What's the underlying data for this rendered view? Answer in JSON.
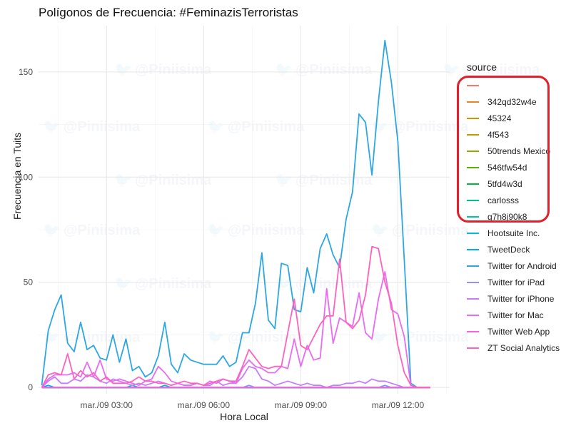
{
  "chart_data": {
    "type": "line",
    "title": "Polígonos de Frecuencia: #FeminazisTerroristas",
    "xlabel": "Hora Local",
    "ylabel": "Frecuencia en Tuits",
    "x_tick_labels": [
      "mar./09 03:00",
      "mar./09 06:00",
      "mar./09 09:00",
      "mar./09 12:00"
    ],
    "x_tick_values": [
      3,
      6,
      9,
      12
    ],
    "xlim": [
      0.9,
      13.6
    ],
    "y_ticks": [
      0,
      50,
      100,
      150
    ],
    "ylim": [
      -3,
      172
    ],
    "grid": true,
    "legend_title": "source",
    "legend_position": "right",
    "x": [
      1.0,
      1.2,
      1.4,
      1.6,
      1.8,
      2.0,
      2.2,
      2.4,
      2.6,
      2.8,
      3.0,
      3.2,
      3.4,
      3.6,
      3.8,
      4.0,
      4.2,
      4.4,
      4.6,
      4.8,
      5.0,
      5.2,
      5.4,
      5.6,
      5.8,
      6.0,
      6.2,
      6.4,
      6.6,
      6.8,
      7.0,
      7.2,
      7.4,
      7.6,
      7.8,
      8.0,
      8.2,
      8.4,
      8.6,
      8.8,
      9.0,
      9.2,
      9.4,
      9.6,
      9.8,
      10.0,
      10.2,
      10.4,
      10.6,
      10.8,
      11.0,
      11.2,
      11.4,
      11.6,
      11.8,
      12.0,
      12.2,
      12.4,
      12.6,
      12.8,
      13.0
    ],
    "series": [
      {
        "name": "",
        "color": "#F8766D",
        "values": [
          0,
          0,
          0,
          0,
          0,
          0,
          0,
          0,
          0,
          0,
          0,
          0,
          0,
          0,
          0,
          0,
          0,
          0,
          0,
          0,
          0,
          0,
          0,
          0,
          0,
          0,
          0,
          0,
          0,
          0,
          0,
          0,
          0,
          0,
          0,
          0,
          0,
          0,
          0,
          0,
          0,
          0,
          0,
          0,
          0,
          0,
          0,
          0,
          0,
          0,
          0,
          0,
          0,
          0,
          0,
          0,
          0,
          0,
          0,
          0,
          0
        ]
      },
      {
        "name": "342qd32w4e",
        "color": "#E7861B",
        "values": [
          0,
          0,
          0,
          0,
          0,
          0,
          0,
          0,
          0,
          0,
          0,
          0,
          0,
          0,
          0,
          0,
          0,
          0,
          0,
          0,
          0,
          0,
          0,
          0,
          0,
          0,
          0,
          0,
          0,
          0,
          0,
          0,
          0,
          0,
          0,
          0,
          0,
          0,
          0,
          0,
          0,
          0,
          0,
          0,
          0,
          0,
          0,
          0,
          0,
          0,
          0,
          0,
          0,
          0,
          0,
          0,
          0,
          0,
          0,
          0,
          0
        ]
      },
      {
        "name": "45324",
        "color": "#D39200",
        "values": [
          0,
          0,
          0,
          0,
          0,
          0,
          0,
          0,
          0,
          0,
          0,
          0,
          0,
          0,
          0,
          0,
          0,
          0,
          0,
          0,
          0,
          0,
          0,
          0,
          0,
          0,
          0,
          0,
          0,
          0,
          0,
          0,
          0,
          0,
          0,
          0,
          0,
          0,
          0,
          0,
          0,
          0,
          0,
          0,
          0,
          0,
          0,
          0,
          0,
          0,
          0,
          0,
          0,
          0,
          0,
          0,
          0,
          0,
          0,
          0,
          0
        ]
      },
      {
        "name": "4f543",
        "color": "#B79F00",
        "values": [
          0,
          0,
          0,
          0,
          0,
          0,
          0,
          0,
          0,
          0,
          0,
          0,
          0,
          0,
          0,
          0,
          0,
          0,
          0,
          0,
          0,
          0,
          0,
          0,
          0,
          0,
          0,
          0,
          0,
          0,
          0,
          0,
          0,
          0,
          0,
          0,
          0,
          0,
          0,
          0,
          0,
          0,
          0,
          0,
          0,
          0,
          0,
          0,
          0,
          0,
          0,
          0,
          0,
          0,
          0,
          0,
          0,
          0,
          0,
          0,
          0
        ]
      },
      {
        "name": "50trends Mexico",
        "color": "#93AA00",
        "values": [
          0,
          0,
          0,
          0,
          0,
          0,
          0,
          0,
          0,
          0,
          0,
          0,
          0,
          0,
          0,
          0,
          0,
          0,
          0,
          0,
          0,
          0,
          0,
          0,
          0,
          0,
          0,
          0,
          0,
          0,
          0,
          0,
          0,
          0,
          0,
          0,
          0,
          0,
          0,
          0,
          0,
          0,
          0,
          0,
          0,
          0,
          0,
          0,
          0,
          0,
          0,
          0,
          0,
          0,
          0,
          0,
          0,
          0,
          0,
          0,
          0
        ]
      },
      {
        "name": "546tfw54d",
        "color": "#5BB300",
        "values": [
          0,
          0,
          0,
          0,
          0,
          0,
          0,
          0,
          0,
          0,
          0,
          0,
          0,
          0,
          0,
          0,
          0,
          0,
          0,
          0,
          0,
          0,
          0,
          0,
          0,
          0,
          0,
          0,
          0,
          0,
          0,
          0,
          0,
          0,
          0,
          0,
          0,
          0,
          0,
          0,
          0,
          0,
          0,
          0,
          0,
          0,
          0,
          0,
          0,
          0,
          0,
          0,
          0,
          0,
          0,
          0,
          0,
          0,
          0,
          0,
          0
        ]
      },
      {
        "name": "5tfd4w3d",
        "color": "#00BA38",
        "values": [
          0,
          0,
          0,
          0,
          0,
          0,
          0,
          0,
          0,
          0,
          0,
          0,
          0,
          0,
          0,
          0,
          0,
          0,
          0,
          0,
          0,
          0,
          0,
          0,
          0,
          0,
          0,
          0,
          0,
          0,
          0,
          0,
          0,
          0,
          0,
          0,
          0,
          0,
          0,
          0,
          0,
          0,
          0,
          0,
          0,
          0,
          0,
          0,
          0,
          0,
          0,
          0,
          0,
          0,
          0,
          0,
          0,
          0,
          0,
          0,
          0
        ]
      },
      {
        "name": "carlosss",
        "color": "#00C08B",
        "values": [
          0,
          0,
          0,
          0,
          0,
          0,
          0,
          0,
          0,
          0,
          0,
          0,
          0,
          0,
          0,
          0,
          0,
          0,
          0,
          0,
          0,
          0,
          0,
          0,
          0,
          0,
          0,
          0,
          0,
          0,
          0,
          0,
          0,
          0,
          0,
          0,
          0,
          0,
          0,
          0,
          0,
          0,
          0,
          0,
          0,
          0,
          0,
          0,
          0,
          0,
          0,
          0,
          0,
          0,
          0,
          0,
          0,
          0,
          0,
          0,
          0
        ]
      },
      {
        "name": "g7h8j90k8",
        "color": "#00C1B2",
        "values": [
          0,
          0,
          0,
          0,
          0,
          0,
          0,
          0,
          0,
          0,
          0,
          0,
          0,
          0,
          0,
          0,
          0,
          0,
          0,
          0,
          0,
          0,
          0,
          0,
          0,
          0,
          0,
          0,
          0,
          0,
          0,
          0,
          0,
          0,
          0,
          0,
          0,
          0,
          0,
          0,
          0,
          0,
          0,
          0,
          0,
          0,
          0,
          0,
          0,
          0,
          0,
          0,
          0,
          0,
          0,
          0,
          0,
          0,
          0,
          0,
          0
        ]
      },
      {
        "name": "Hootsuite Inc.",
        "color": "#00BBDA",
        "values": [
          0,
          0,
          0,
          0,
          0,
          0,
          0,
          0,
          0,
          0,
          0,
          0,
          0,
          0,
          1,
          0,
          0,
          0,
          0,
          1,
          0,
          0,
          0,
          0,
          0,
          0,
          0,
          0,
          0,
          0,
          0,
          0,
          0,
          0,
          0,
          0,
          0,
          0,
          0,
          0,
          0,
          0,
          0,
          0,
          0,
          0,
          0,
          0,
          0,
          0,
          0,
          0,
          0,
          0,
          0,
          0,
          0,
          0,
          0,
          0,
          0
        ]
      },
      {
        "name": "TweetDeck",
        "color": "#00ACFC",
        "values": [
          0,
          1,
          0,
          0,
          0,
          0,
          0,
          0,
          0,
          0,
          0,
          0,
          0,
          0,
          0,
          0,
          0,
          0,
          0,
          0,
          0,
          0,
          0,
          0,
          0,
          0,
          0,
          0,
          0,
          0,
          0,
          0,
          0,
          0,
          0,
          0,
          0,
          0,
          0,
          0,
          0,
          0,
          0,
          0,
          0,
          0,
          0,
          0,
          0,
          0,
          0,
          0,
          0,
          0,
          0,
          0,
          0,
          0,
          0,
          0,
          0
        ]
      },
      {
        "name": "Twitter for Android",
        "color": "#2DA7E4",
        "values": [
          1,
          27,
          37,
          44,
          21,
          17,
          31,
          18,
          20,
          14,
          13,
          25,
          12,
          23,
          8,
          10,
          5,
          7,
          15,
          31,
          11,
          7,
          16,
          13,
          12,
          11,
          11,
          11,
          15,
          10,
          12,
          26,
          26,
          40,
          64,
          32,
          28,
          59,
          58,
          37,
          36,
          57,
          45,
          66,
          73,
          63,
          57,
          80,
          93,
          130,
          126,
          101,
          136,
          165,
          145,
          117,
          60,
          2,
          0,
          0,
          0
        ]
      },
      {
        "name": "Twitter for iPad",
        "color": "#8B93FF",
        "values": [
          0,
          0,
          0,
          0,
          0,
          0,
          0,
          0,
          0,
          0,
          0,
          0,
          0,
          0,
          0,
          0,
          0,
          0,
          0,
          0,
          0,
          0,
          0,
          0,
          0,
          0,
          0,
          0,
          0,
          0,
          0,
          0,
          1,
          0,
          0,
          0,
          0,
          0,
          0,
          0,
          0,
          0,
          0,
          0,
          0,
          0,
          0,
          0,
          0,
          0,
          0,
          0,
          0,
          1,
          0,
          0,
          0,
          0,
          0,
          0,
          0
        ]
      },
      {
        "name": "Twitter for iPhone",
        "color": "#C77CFF",
        "values": [
          0,
          3,
          5,
          2,
          2,
          4,
          3,
          6,
          5,
          3,
          2,
          4,
          3,
          2,
          1,
          2,
          1,
          2,
          3,
          2,
          1,
          2,
          1,
          1,
          2,
          1,
          1,
          3,
          1,
          2,
          2,
          5,
          10,
          9,
          4,
          3,
          1,
          2,
          3,
          2,
          1,
          2,
          1,
          1,
          0,
          1,
          1,
          2,
          2,
          3,
          2,
          4,
          3,
          3,
          2,
          1,
          0,
          0,
          0,
          0,
          0
        ]
      },
      {
        "name": "Twitter for Mac",
        "color": "#E76BF3",
        "values": [
          0,
          4,
          6,
          6,
          6,
          7,
          5,
          12,
          5,
          13,
          4,
          3,
          4,
          3,
          2,
          1,
          3,
          4,
          10,
          7,
          3,
          2,
          1,
          1,
          2,
          1,
          3,
          2,
          4,
          3,
          2,
          9,
          13,
          10,
          9,
          7,
          7,
          10,
          9,
          23,
          10,
          20,
          13,
          14,
          47,
          21,
          33,
          31,
          29,
          45,
          26,
          23,
          42,
          55,
          37,
          35,
          24,
          1,
          0,
          0,
          0
        ]
      },
      {
        "name": "Twitter Web App",
        "color": "#FA62DB",
        "values": [
          0,
          0,
          0,
          0,
          0,
          0,
          0,
          0,
          0,
          0,
          0,
          0,
          0,
          0,
          0,
          0,
          0,
          0,
          0,
          0,
          0,
          0,
          0,
          0,
          0,
          0,
          0,
          0,
          0,
          0,
          0,
          0,
          0,
          0,
          0,
          0,
          0,
          0,
          0,
          0,
          0,
          0,
          0,
          0,
          0,
          0,
          0,
          0,
          0,
          0,
          0,
          0,
          0,
          0,
          0,
          0,
          0,
          0,
          0,
          0,
          0
        ]
      },
      {
        "name": "ZT Social Analytics",
        "color": "#FF62BC",
        "values": [
          0,
          6,
          7,
          6,
          16,
          4,
          8,
          5,
          7,
          3,
          5,
          2,
          2,
          2,
          3,
          5,
          3,
          3,
          2,
          2,
          1,
          2,
          3,
          2,
          2,
          1,
          2,
          3,
          4,
          3,
          3,
          10,
          18,
          14,
          10,
          9,
          10,
          10,
          26,
          42,
          20,
          18,
          24,
          30,
          34,
          34,
          61,
          31,
          28,
          32,
          44,
          67,
          66,
          50,
          40,
          20,
          7,
          1,
          0,
          0,
          0
        ]
      }
    ]
  },
  "watermark": "@Piniisima",
  "highlight_color": "#E0202A"
}
